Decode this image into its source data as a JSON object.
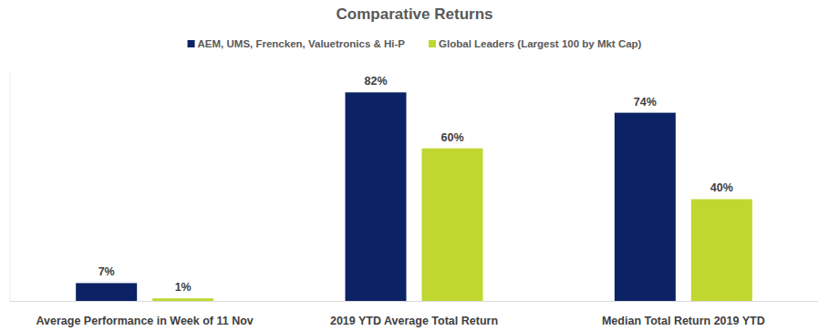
{
  "chart_data": {
    "type": "bar",
    "title": "Comparative Returns",
    "categories": [
      "Average Performance in Week of 11 Nov",
      "2019 YTD Average Total Return",
      "Median Total Return 2019 YTD"
    ],
    "series": [
      {
        "name": "AEM, UMS, Frencken, Valuetronics & Hi-P",
        "color": "#0b2265",
        "values": [
          7,
          82,
          74
        ],
        "value_labels": [
          "7%",
          "82%",
          "74%"
        ]
      },
      {
        "name": "Global Leaders (Largest 100 by Mkt Cap)",
        "color": "#bfd730",
        "values": [
          1,
          60,
          40
        ],
        "value_labels": [
          "1%",
          "60%",
          "40%"
        ]
      }
    ],
    "ylim": [
      0,
      90
    ],
    "grid": false,
    "legend": "top",
    "data_labels": true,
    "tick_labels": "x"
  }
}
